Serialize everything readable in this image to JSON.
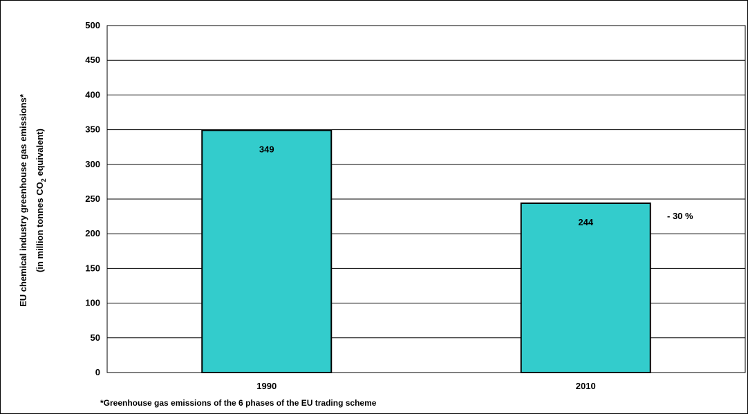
{
  "chart_data": {
    "type": "bar",
    "categories": [
      "1990",
      "2010"
    ],
    "values": [
      349,
      244
    ],
    "data_labels": [
      "349",
      "244"
    ],
    "ylabel_line1": "EU chemical industry greenhouse gas emissions*",
    "ylabel_line2_pre": "(in million tonnes CO",
    "ylabel_line2_sub": "2",
    "ylabel_line2_post": " equivalent)",
    "ylim": [
      0,
      500
    ],
    "yticks": [
      0,
      50,
      100,
      150,
      200,
      250,
      300,
      350,
      400,
      450,
      500
    ],
    "grid": true,
    "annotation": "- 30 %",
    "footnote": "*Greenhouse gas emissions of the 6 phases of the EU trading scheme",
    "colors": {
      "bar": "#33CCCC",
      "bar_border": "#000000",
      "grid": "#000000"
    }
  }
}
